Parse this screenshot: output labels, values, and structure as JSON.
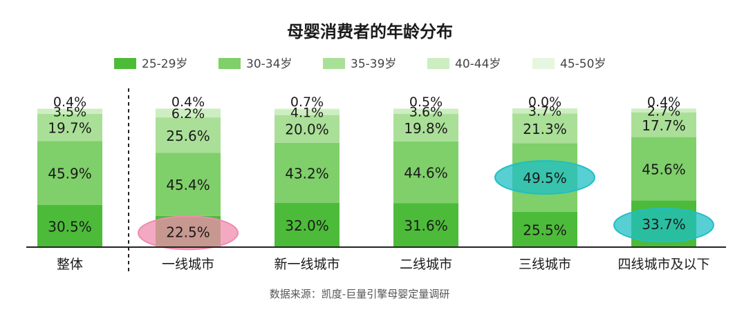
{
  "chart_data": {
    "type": "bar",
    "stacked": true,
    "title": "母婴消费者的年龄分布",
    "categories": [
      "整体",
      "一线城市",
      "新一线城市",
      "二线城市",
      "三线城市",
      "四线城市及以下"
    ],
    "series": [
      {
        "name": "25-29岁",
        "color": "#4dbb3a",
        "values": [
          30.5,
          22.5,
          32.0,
          31.6,
          25.5,
          33.7
        ]
      },
      {
        "name": "30-34岁",
        "color": "#7fcf6a",
        "values": [
          45.9,
          45.4,
          43.2,
          44.6,
          49.5,
          45.6
        ]
      },
      {
        "name": "35-39岁",
        "color": "#aadf98",
        "values": [
          19.7,
          25.6,
          20.0,
          19.8,
          21.3,
          17.7
        ]
      },
      {
        "name": "40-44岁",
        "color": "#cdeec0",
        "values": [
          3.5,
          6.2,
          4.1,
          3.6,
          3.7,
          2.7
        ]
      },
      {
        "name": "45-50岁",
        "color": "#e7f6e0",
        "values": [
          0.4,
          0.4,
          0.7,
          0.5,
          0.0,
          0.4
        ]
      }
    ],
    "highlights": [
      {
        "category": "一线城市",
        "series": "25-29岁",
        "color": "#f08cae"
      },
      {
        "category": "三线城市",
        "series": "30-34岁",
        "color": "#1fbfc4"
      },
      {
        "category": "四线城市及以下",
        "series": "25-29岁",
        "color": "#1fbfc4"
      }
    ],
    "ylim": [
      0,
      100
    ],
    "legend_position": "top-center",
    "grid": false,
    "source": "数据来源：凯度-巨量引擎母婴定量调研"
  }
}
